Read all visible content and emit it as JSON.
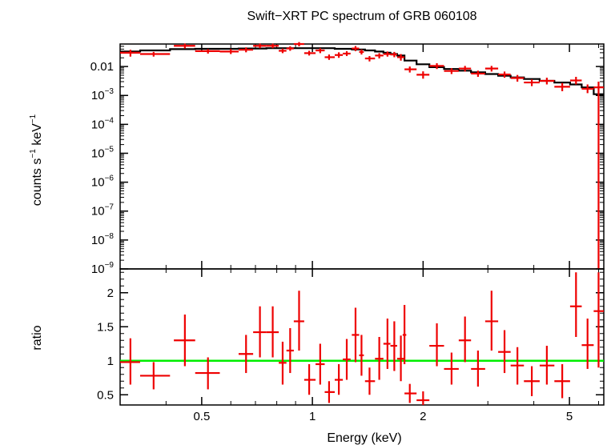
{
  "chart_data": [
    {
      "panel": "spectrum",
      "type": "scatter",
      "title": "Swift−XRT PC spectrum of GRB 060108",
      "ylabel_parts": [
        "counts s",
        "−1",
        " keV",
        "−1"
      ],
      "y_scale": "log",
      "ylim": [
        1e-09,
        0.06
      ],
      "x_scale": "log",
      "xlim": [
        0.3,
        6.2
      ],
      "y_ticks": [
        {
          "value": 0.01,
          "base": "0.01",
          "exp": ""
        },
        {
          "value": 0.001,
          "base": "10",
          "exp": "−3"
        },
        {
          "value": 0.0001,
          "base": "10",
          "exp": "−4"
        },
        {
          "value": 1e-05,
          "base": "10",
          "exp": "−5"
        },
        {
          "value": 1e-06,
          "base": "10",
          "exp": "−6"
        },
        {
          "value": 1e-07,
          "base": "10",
          "exp": "−7"
        },
        {
          "value": 1e-08,
          "base": "10",
          "exp": "−8"
        },
        {
          "value": 1e-09,
          "base": "10",
          "exp": "−9"
        }
      ],
      "series": [
        {
          "label": "data",
          "color": "#ee0000",
          "points": [
            {
              "x": 0.32,
              "xlo": 0.3,
              "xhi": 0.34,
              "y": 0.03,
              "ylo": 0.022,
              "yhi": 0.038
            },
            {
              "x": 0.37,
              "xlo": 0.34,
              "xhi": 0.41,
              "y": 0.027,
              "ylo": 0.022,
              "yhi": 0.032
            },
            {
              "x": 0.45,
              "xlo": 0.42,
              "xhi": 0.48,
              "y": 0.052,
              "ylo": 0.042,
              "yhi": 0.062
            },
            {
              "x": 0.52,
              "xlo": 0.48,
              "xhi": 0.56,
              "y": 0.034,
              "ylo": 0.028,
              "yhi": 0.04
            },
            {
              "x": 0.6,
              "xlo": 0.56,
              "xhi": 0.63,
              "y": 0.033,
              "ylo": 0.027,
              "yhi": 0.04
            },
            {
              "x": 0.66,
              "xlo": 0.63,
              "xhi": 0.69,
              "y": 0.038,
              "ylo": 0.031,
              "yhi": 0.046
            },
            {
              "x": 0.72,
              "xlo": 0.69,
              "xhi": 0.75,
              "y": 0.052,
              "ylo": 0.043,
              "yhi": 0.062
            },
            {
              "x": 0.78,
              "xlo": 0.75,
              "xhi": 0.81,
              "y": 0.052,
              "ylo": 0.043,
              "yhi": 0.062
            },
            {
              "x": 0.83,
              "xlo": 0.81,
              "xhi": 0.85,
              "y": 0.035,
              "ylo": 0.029,
              "yhi": 0.042
            },
            {
              "x": 0.87,
              "xlo": 0.85,
              "xhi": 0.89,
              "y": 0.042,
              "ylo": 0.035,
              "yhi": 0.05
            },
            {
              "x": 0.92,
              "xlo": 0.89,
              "xhi": 0.95,
              "y": 0.06,
              "ylo": 0.05,
              "yhi": 0.07
            },
            {
              "x": 0.98,
              "xlo": 0.95,
              "xhi": 1.02,
              "y": 0.029,
              "ylo": 0.024,
              "yhi": 0.035
            },
            {
              "x": 1.05,
              "xlo": 1.02,
              "xhi": 1.08,
              "y": 0.036,
              "ylo": 0.029,
              "yhi": 0.043
            },
            {
              "x": 1.11,
              "xlo": 1.08,
              "xhi": 1.15,
              "y": 0.021,
              "ylo": 0.017,
              "yhi": 0.026
            },
            {
              "x": 1.18,
              "xlo": 1.15,
              "xhi": 1.21,
              "y": 0.025,
              "ylo": 0.02,
              "yhi": 0.031
            },
            {
              "x": 1.24,
              "xlo": 1.21,
              "xhi": 1.27,
              "y": 0.028,
              "ylo": 0.023,
              "yhi": 0.034
            },
            {
              "x": 1.31,
              "xlo": 1.28,
              "xhi": 1.34,
              "y": 0.042,
              "ylo": 0.034,
              "yhi": 0.051
            },
            {
              "x": 1.36,
              "xlo": 1.34,
              "xhi": 1.38,
              "y": 0.032,
              "ylo": 0.026,
              "yhi": 0.039
            },
            {
              "x": 1.43,
              "xlo": 1.39,
              "xhi": 1.48,
              "y": 0.019,
              "ylo": 0.015,
              "yhi": 0.023
            },
            {
              "x": 1.52,
              "xlo": 1.48,
              "xhi": 1.56,
              "y": 0.024,
              "ylo": 0.019,
              "yhi": 0.029
            },
            {
              "x": 1.6,
              "xlo": 1.56,
              "xhi": 1.63,
              "y": 0.027,
              "ylo": 0.022,
              "yhi": 0.033
            },
            {
              "x": 1.67,
              "xlo": 1.63,
              "xhi": 1.7,
              "y": 0.026,
              "ylo": 0.021,
              "yhi": 0.032
            },
            {
              "x": 1.74,
              "xlo": 1.7,
              "xhi": 1.78,
              "y": 0.021,
              "ylo": 0.016,
              "yhi": 0.027
            },
            {
              "x": 1.84,
              "xlo": 1.78,
              "xhi": 1.92,
              "y": 0.008,
              "ylo": 0.0062,
              "yhi": 0.01
            },
            {
              "x": 2.0,
              "xlo": 1.92,
              "xhi": 2.08,
              "y": 0.0052,
              "ylo": 0.0038,
              "yhi": 0.0068
            },
            {
              "x": 2.18,
              "xlo": 2.08,
              "xhi": 2.28,
              "y": 0.0105,
              "ylo": 0.0082,
              "yhi": 0.013
            },
            {
              "x": 2.39,
              "xlo": 2.28,
              "xhi": 2.5,
              "y": 0.007,
              "ylo": 0.0055,
              "yhi": 0.0088
            },
            {
              "x": 2.6,
              "xlo": 2.5,
              "xhi": 2.7,
              "y": 0.0085,
              "ylo": 0.0067,
              "yhi": 0.0105
            },
            {
              "x": 2.82,
              "xlo": 2.7,
              "xhi": 2.95,
              "y": 0.0057,
              "ylo": 0.0044,
              "yhi": 0.0072
            },
            {
              "x": 3.07,
              "xlo": 2.95,
              "xhi": 3.2,
              "y": 0.0085,
              "ylo": 0.0067,
              "yhi": 0.0105
            },
            {
              "x": 3.33,
              "xlo": 3.2,
              "xhi": 3.46,
              "y": 0.0053,
              "ylo": 0.0041,
              "yhi": 0.0067
            },
            {
              "x": 3.61,
              "xlo": 3.46,
              "xhi": 3.76,
              "y": 0.004,
              "ylo": 0.003,
              "yhi": 0.0051
            },
            {
              "x": 3.95,
              "xlo": 3.76,
              "xhi": 4.15,
              "y": 0.0028,
              "ylo": 0.0021,
              "yhi": 0.0036
            },
            {
              "x": 4.34,
              "xlo": 4.15,
              "xhi": 4.55,
              "y": 0.0032,
              "ylo": 0.0024,
              "yhi": 0.0041
            },
            {
              "x": 4.78,
              "xlo": 4.55,
              "xhi": 5.02,
              "y": 0.002,
              "ylo": 0.0014,
              "yhi": 0.0027
            },
            {
              "x": 5.21,
              "xlo": 5.02,
              "xhi": 5.4,
              "y": 0.0033,
              "ylo": 0.0024,
              "yhi": 0.0044
            },
            {
              "x": 5.6,
              "xlo": 5.4,
              "xhi": 5.82,
              "y": 0.0017,
              "ylo": 0.0012,
              "yhi": 0.0024
            },
            {
              "x": 6.0,
              "xlo": 5.82,
              "xhi": 6.2,
              "y": 0.0019,
              "ylo": 1e-09,
              "yhi": 0.003
            }
          ]
        },
        {
          "label": "model",
          "color": "#000000",
          "step_edges": [
            0.3,
            0.34,
            0.41,
            0.48,
            0.56,
            0.63,
            0.69,
            0.75,
            0.81,
            0.89,
            0.95,
            1.02,
            1.15,
            1.28,
            1.39,
            1.48,
            1.56,
            1.63,
            1.7,
            1.78,
            1.92,
            2.08,
            2.28,
            2.5,
            2.7,
            2.95,
            3.2,
            3.46,
            3.76,
            4.15,
            4.55,
            5.02,
            5.4,
            5.82,
            6.2
          ],
          "step_values": [
            0.033,
            0.036,
            0.04,
            0.041,
            0.041,
            0.042,
            0.042,
            0.043,
            0.043,
            0.043,
            0.043,
            0.043,
            0.041,
            0.039,
            0.036,
            0.033,
            0.03,
            0.027,
            0.024,
            0.016,
            0.012,
            0.0095,
            0.0082,
            0.0072,
            0.0063,
            0.0055,
            0.0048,
            0.0042,
            0.0037,
            0.0032,
            0.0028,
            0.0024,
            0.0019,
            0.0011
          ]
        }
      ]
    },
    {
      "panel": "ratio",
      "type": "scatter",
      "ylabel": "ratio",
      "xlabel": "Energy (keV)",
      "y_scale": "linear",
      "ylim": [
        0.35,
        2.35
      ],
      "x_scale": "log",
      "xlim": [
        0.3,
        6.2
      ],
      "y_ticks": [
        {
          "value": 0.5,
          "label": "0.5"
        },
        {
          "value": 1.0,
          "label": "1"
        },
        {
          "value": 1.5,
          "label": "1.5"
        },
        {
          "value": 2.0,
          "label": "2"
        }
      ],
      "x_ticks": [
        {
          "value": 0.5,
          "label": "0.5"
        },
        {
          "value": 1.0,
          "label": "1"
        },
        {
          "value": 2.0,
          "label": "2"
        },
        {
          "value": 5.0,
          "label": "5"
        }
      ],
      "reference_line": {
        "y": 1.0,
        "color": "#00ee00"
      },
      "series": [
        {
          "label": "ratio",
          "color": "#ee0000",
          "points": [
            {
              "x": 0.32,
              "xlo": 0.3,
              "xhi": 0.34,
              "y": 0.98,
              "ylo": 0.65,
              "yhi": 1.33
            },
            {
              "x": 0.37,
              "xlo": 0.34,
              "xhi": 0.41,
              "y": 0.78,
              "ylo": 0.58,
              "yhi": 0.98
            },
            {
              "x": 0.45,
              "xlo": 0.42,
              "xhi": 0.48,
              "y": 1.3,
              "ylo": 0.92,
              "yhi": 1.68
            },
            {
              "x": 0.52,
              "xlo": 0.48,
              "xhi": 0.56,
              "y": 0.82,
              "ylo": 0.58,
              "yhi": 1.05
            },
            {
              "x": 0.66,
              "xlo": 0.63,
              "xhi": 0.69,
              "y": 1.1,
              "ylo": 0.82,
              "yhi": 1.38
            },
            {
              "x": 0.72,
              "xlo": 0.69,
              "xhi": 0.75,
              "y": 1.42,
              "ylo": 1.05,
              "yhi": 1.8
            },
            {
              "x": 0.78,
              "xlo": 0.75,
              "xhi": 0.81,
              "y": 1.42,
              "ylo": 1.05,
              "yhi": 1.8
            },
            {
              "x": 0.83,
              "xlo": 0.81,
              "xhi": 0.85,
              "y": 0.97,
              "ylo": 0.65,
              "yhi": 1.28
            },
            {
              "x": 0.87,
              "xlo": 0.85,
              "xhi": 0.89,
              "y": 1.15,
              "ylo": 0.82,
              "yhi": 1.48
            },
            {
              "x": 0.92,
              "xlo": 0.89,
              "xhi": 0.95,
              "y": 1.58,
              "ylo": 1.15,
              "yhi": 2.03
            },
            {
              "x": 0.98,
              "xlo": 0.95,
              "xhi": 1.02,
              "y": 0.72,
              "ylo": 0.5,
              "yhi": 0.95
            },
            {
              "x": 1.05,
              "xlo": 1.02,
              "xhi": 1.08,
              "y": 0.95,
              "ylo": 0.65,
              "yhi": 1.25
            },
            {
              "x": 1.11,
              "xlo": 1.08,
              "xhi": 1.15,
              "y": 0.54,
              "ylo": 0.38,
              "yhi": 0.7
            },
            {
              "x": 1.18,
              "xlo": 1.15,
              "xhi": 1.21,
              "y": 0.72,
              "ylo": 0.5,
              "yhi": 0.95
            },
            {
              "x": 1.24,
              "xlo": 1.21,
              "xhi": 1.27,
              "y": 1.02,
              "ylo": 0.72,
              "yhi": 1.32
            },
            {
              "x": 1.31,
              "xlo": 1.28,
              "xhi": 1.34,
              "y": 1.38,
              "ylo": 0.98,
              "yhi": 1.78
            },
            {
              "x": 1.36,
              "xlo": 1.34,
              "xhi": 1.38,
              "y": 1.08,
              "ylo": 0.78,
              "yhi": 1.38
            },
            {
              "x": 1.43,
              "xlo": 1.39,
              "xhi": 1.48,
              "y": 0.7,
              "ylo": 0.5,
              "yhi": 0.9
            },
            {
              "x": 1.52,
              "xlo": 1.48,
              "xhi": 1.56,
              "y": 1.03,
              "ylo": 0.72,
              "yhi": 1.35
            },
            {
              "x": 1.6,
              "xlo": 1.56,
              "xhi": 1.63,
              "y": 1.25,
              "ylo": 0.88,
              "yhi": 1.62
            },
            {
              "x": 1.67,
              "xlo": 1.63,
              "xhi": 1.7,
              "y": 1.22,
              "ylo": 0.85,
              "yhi": 1.58
            },
            {
              "x": 1.74,
              "xlo": 1.7,
              "xhi": 1.78,
              "y": 1.03,
              "ylo": 0.7,
              "yhi": 1.37
            },
            {
              "x": 1.78,
              "xlo": 1.76,
              "xhi": 1.8,
              "y": 1.38,
              "ylo": 0.95,
              "yhi": 1.82
            },
            {
              "x": 1.84,
              "xlo": 1.78,
              "xhi": 1.92,
              "y": 0.52,
              "ylo": 0.38,
              "yhi": 0.66
            },
            {
              "x": 2.0,
              "xlo": 1.92,
              "xhi": 2.08,
              "y": 0.42,
              "ylo": 0.3,
              "yhi": 0.55
            },
            {
              "x": 2.18,
              "xlo": 2.08,
              "xhi": 2.28,
              "y": 1.22,
              "ylo": 0.92,
              "yhi": 1.55
            },
            {
              "x": 2.39,
              "xlo": 2.28,
              "xhi": 2.5,
              "y": 0.88,
              "ylo": 0.65,
              "yhi": 1.12
            },
            {
              "x": 2.6,
              "xlo": 2.5,
              "xhi": 2.7,
              "y": 1.3,
              "ylo": 0.98,
              "yhi": 1.65
            },
            {
              "x": 2.82,
              "xlo": 2.7,
              "xhi": 2.95,
              "y": 0.88,
              "ylo": 0.62,
              "yhi": 1.15
            },
            {
              "x": 3.07,
              "xlo": 2.95,
              "xhi": 3.2,
              "y": 1.58,
              "ylo": 1.15,
              "yhi": 2.03
            },
            {
              "x": 3.33,
              "xlo": 3.2,
              "xhi": 3.46,
              "y": 1.13,
              "ylo": 0.82,
              "yhi": 1.45
            },
            {
              "x": 3.61,
              "xlo": 3.46,
              "xhi": 3.76,
              "y": 0.93,
              "ylo": 0.65,
              "yhi": 1.2
            },
            {
              "x": 3.95,
              "xlo": 3.76,
              "xhi": 4.15,
              "y": 0.7,
              "ylo": 0.48,
              "yhi": 0.92
            },
            {
              "x": 4.34,
              "xlo": 4.15,
              "xhi": 4.55,
              "y": 0.93,
              "ylo": 0.65,
              "yhi": 1.22
            },
            {
              "x": 4.78,
              "xlo": 4.55,
              "xhi": 5.02,
              "y": 0.7,
              "ylo": 0.45,
              "yhi": 0.95
            },
            {
              "x": 5.21,
              "xlo": 5.02,
              "xhi": 5.4,
              "y": 1.8,
              "ylo": 1.35,
              "yhi": 2.3
            },
            {
              "x": 5.6,
              "xlo": 5.4,
              "xhi": 5.82,
              "y": 1.23,
              "ylo": 0.88,
              "yhi": 1.62
            },
            {
              "x": 6.0,
              "xlo": 5.82,
              "xhi": 6.2,
              "y": 1.73,
              "ylo": 0.9,
              "yhi": 2.3
            }
          ]
        }
      ]
    }
  ]
}
